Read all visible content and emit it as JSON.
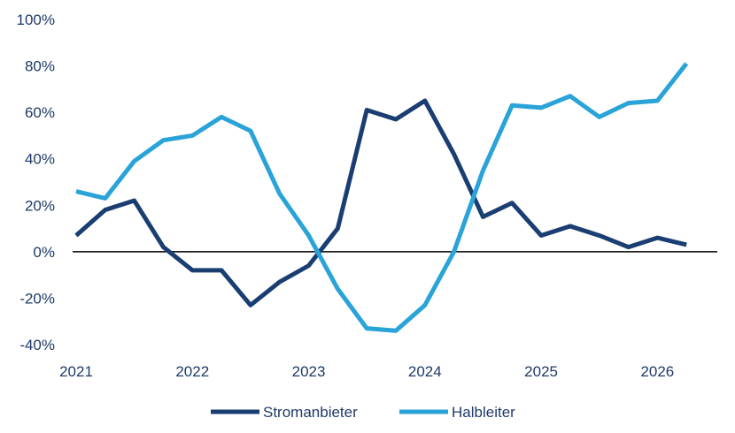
{
  "chart_data": {
    "type": "line",
    "title": "",
    "xlabel": "",
    "ylabel": "",
    "x": [
      2021.0,
      2021.25,
      2021.5,
      2021.75,
      2022.0,
      2022.25,
      2022.5,
      2022.75,
      2023.0,
      2023.25,
      2023.5,
      2023.75,
      2024.0,
      2024.25,
      2024.5,
      2024.75,
      2025.0,
      2025.25,
      2025.5,
      2025.75,
      2026.0,
      2026.25
    ],
    "x_ticks": [
      2021,
      2022,
      2023,
      2024,
      2025,
      2026
    ],
    "x_tick_labels": [
      "2021",
      "2022",
      "2023",
      "2024",
      "2025",
      "2026"
    ],
    "xlim": [
      2021.0,
      2026.5
    ],
    "ylim": [
      -40,
      100
    ],
    "y_ticks": [
      -40,
      -20,
      0,
      20,
      40,
      60,
      80,
      100
    ],
    "y_tick_labels": [
      "-40%",
      "-20%",
      "0%",
      "20%",
      "40%",
      "60%",
      "80%",
      "100%"
    ],
    "zero_line": true,
    "grid": false,
    "legend_position": "bottom-center",
    "series": [
      {
        "name": "Stromanbieter",
        "color": "#1a3e72",
        "values": [
          7,
          18,
          22,
          2,
          -8,
          -8,
          -23,
          -13,
          -6,
          10,
          61,
          57,
          65,
          42,
          15,
          21,
          7,
          11,
          7,
          2,
          6,
          3
        ]
      },
      {
        "name": "Halbleiter",
        "color": "#29a3d8",
        "values": [
          26,
          23,
          39,
          48,
          50,
          58,
          52,
          25,
          7,
          -16,
          -33,
          -34,
          -23,
          0,
          35,
          63,
          62,
          67,
          58,
          64,
          65,
          81
        ]
      }
    ]
  }
}
